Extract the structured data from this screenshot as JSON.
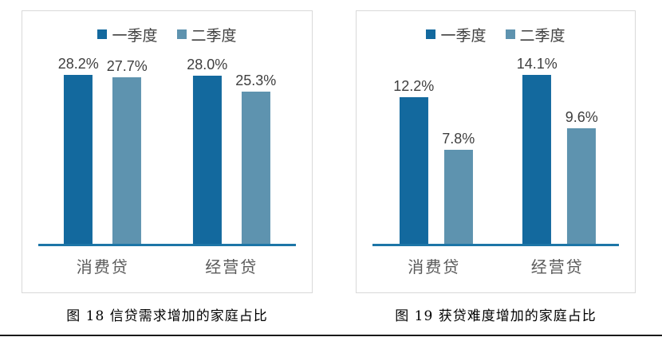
{
  "colors": {
    "q1_bar": "#13699e",
    "q2_bar": "#5e93af",
    "axis_line": "#1d76a7",
    "panel_border": "#d9d9d9",
    "data_label": "#3f3f3f",
    "category_label": "#595959",
    "legend_label": "#404040",
    "caption_text": "#000000",
    "page_background": "#ffffff",
    "footer_rule": "#1a1a1a"
  },
  "chart_data": [
    {
      "type": "bar",
      "title": "",
      "caption": "图 18 信贷需求增加的家庭占比",
      "categories": [
        "消费贷",
        "经营贷"
      ],
      "series": [
        {
          "name": "一季度",
          "color": "#13699e",
          "values": [
            28.2,
            28.0
          ],
          "labels": [
            "28.2%",
            "28.0%"
          ]
        },
        {
          "name": "二季度",
          "color": "#5e93af",
          "values": [
            27.7,
            25.3
          ],
          "labels": [
            "27.7%",
            "25.3%"
          ]
        }
      ],
      "xlabel": "",
      "ylabel": "",
      "ylim": [
        0,
        30
      ],
      "legend_position": "top",
      "grid": false
    },
    {
      "type": "bar",
      "title": "",
      "caption": "图 19 获贷难度增加的家庭占比",
      "categories": [
        "消费贷",
        "经营贷"
      ],
      "series": [
        {
          "name": "一季度",
          "color": "#13699e",
          "values": [
            12.2,
            14.1
          ],
          "labels": [
            "12.2%",
            "14.1%"
          ]
        },
        {
          "name": "二季度",
          "color": "#5e93af",
          "values": [
            7.8,
            9.6
          ],
          "labels": [
            "7.8%",
            "9.6%"
          ]
        }
      ],
      "xlabel": "",
      "ylabel": "",
      "ylim": [
        0,
        15
      ],
      "legend_position": "top",
      "grid": false
    }
  ]
}
